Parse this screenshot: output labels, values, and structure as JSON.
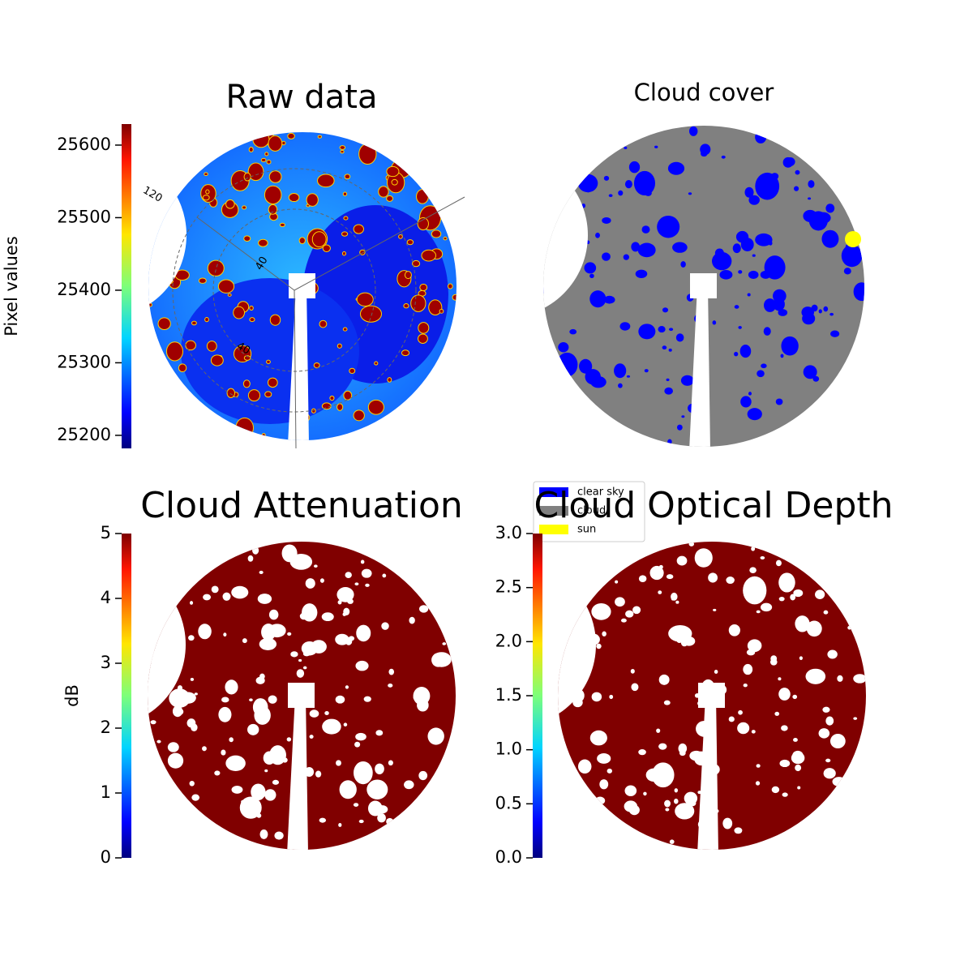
{
  "chart_data": [
    {
      "type": "image",
      "title": "Raw data",
      "colormap": "jet",
      "polar_labels": [
        "120",
        "40",
        "40"
      ],
      "colorbar": {
        "label": "Pixel values",
        "clim": [
          25182,
          25629
        ],
        "ticks": [
          25200,
          25300,
          25400,
          25500,
          25600
        ]
      }
    },
    {
      "type": "image",
      "title": "Cloud cover",
      "legend": [
        {
          "name": "clear sky",
          "color": "#0000ff"
        },
        {
          "name": "cloud",
          "color": "#808080"
        },
        {
          "name": "sun",
          "color": "#ffff00"
        }
      ]
    },
    {
      "type": "image",
      "title": "Cloud Attenuation",
      "colormap": "jet",
      "colorbar": {
        "label": "dB",
        "clim": [
          0,
          5
        ],
        "ticks": [
          0,
          1,
          2,
          3,
          4,
          5
        ]
      }
    },
    {
      "type": "image",
      "title": "Cloud Optical Depth",
      "colormap": "jet",
      "colorbar": {
        "clim": [
          0,
          3
        ],
        "ticks": [
          {
            "value": 0,
            "label": "0.0"
          },
          {
            "value": 0.5,
            "label": "0.5"
          },
          {
            "value": 1,
            "label": "1.0"
          },
          {
            "value": 1.5,
            "label": "1.5"
          },
          {
            "value": 2,
            "label": "2.0"
          },
          {
            "value": 2.5,
            "label": "2.5"
          },
          {
            "value": 3,
            "label": "3.0"
          }
        ]
      }
    }
  ]
}
